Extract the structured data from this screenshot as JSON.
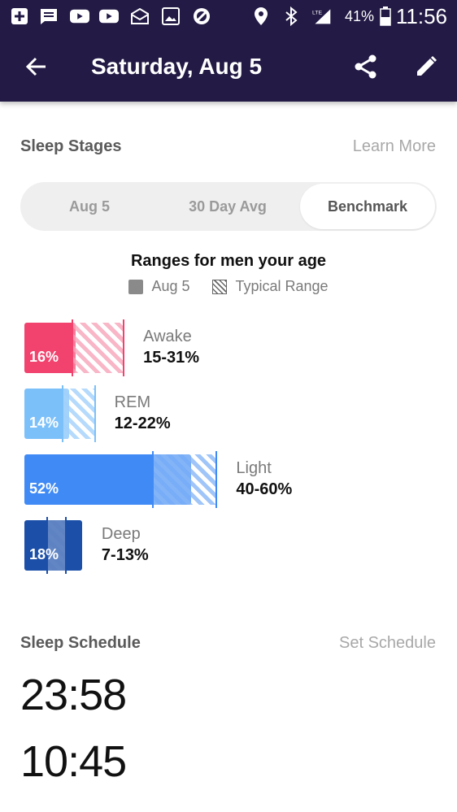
{
  "status_bar": {
    "battery": "41%",
    "network": "LTE",
    "time": "11:56"
  },
  "app_bar": {
    "title": "Saturday, Aug 5"
  },
  "sleep_stages": {
    "heading": "Sleep Stages",
    "link": "Learn More",
    "tabs": [
      {
        "label": "Aug 5",
        "active": false
      },
      {
        "label": "30 Day Avg",
        "active": false
      },
      {
        "label": "Benchmark",
        "active": true
      }
    ],
    "ranges_title": "Ranges for men your age",
    "legend": {
      "solid": "Aug 5",
      "hatch": "Typical Range"
    },
    "stages": [
      {
        "name": "Awake",
        "pct_label": "16%",
        "value": 16,
        "range_label": "15-31%",
        "range_min": 15,
        "range_max": 31,
        "color": "#f2426e",
        "light": "#f7a9bd"
      },
      {
        "name": "REM",
        "pct_label": "14%",
        "value": 14,
        "range_label": "12-22%",
        "range_min": 12,
        "range_max": 22,
        "color": "#7cc0fa",
        "light": "#a8d4fb"
      },
      {
        "name": "Light",
        "pct_label": "52%",
        "value": 52,
        "range_label": "40-60%",
        "range_min": 40,
        "range_max": 60,
        "color": "#3f8af5",
        "light": "#8fbbf7"
      },
      {
        "name": "Deep",
        "pct_label": "18%",
        "value": 18,
        "range_label": "7-13%",
        "range_min": 7,
        "range_max": 13,
        "color": "#1b4fa8",
        "light": "#6e8fc9"
      }
    ]
  },
  "sleep_schedule": {
    "heading": "Sleep Schedule",
    "link": "Set Schedule",
    "bedtime": "23:58",
    "wake_time": "10:45"
  },
  "icons": [
    "add-icon",
    "message-icon",
    "youtube-icon",
    "youtube-icon",
    "mail-icon",
    "image-icon",
    "blocked-icon",
    "location-icon",
    "bluetooth-icon",
    "signal-icon",
    "battery-icon",
    "back-arrow-icon",
    "share-icon",
    "edit-pencil-icon"
  ]
}
